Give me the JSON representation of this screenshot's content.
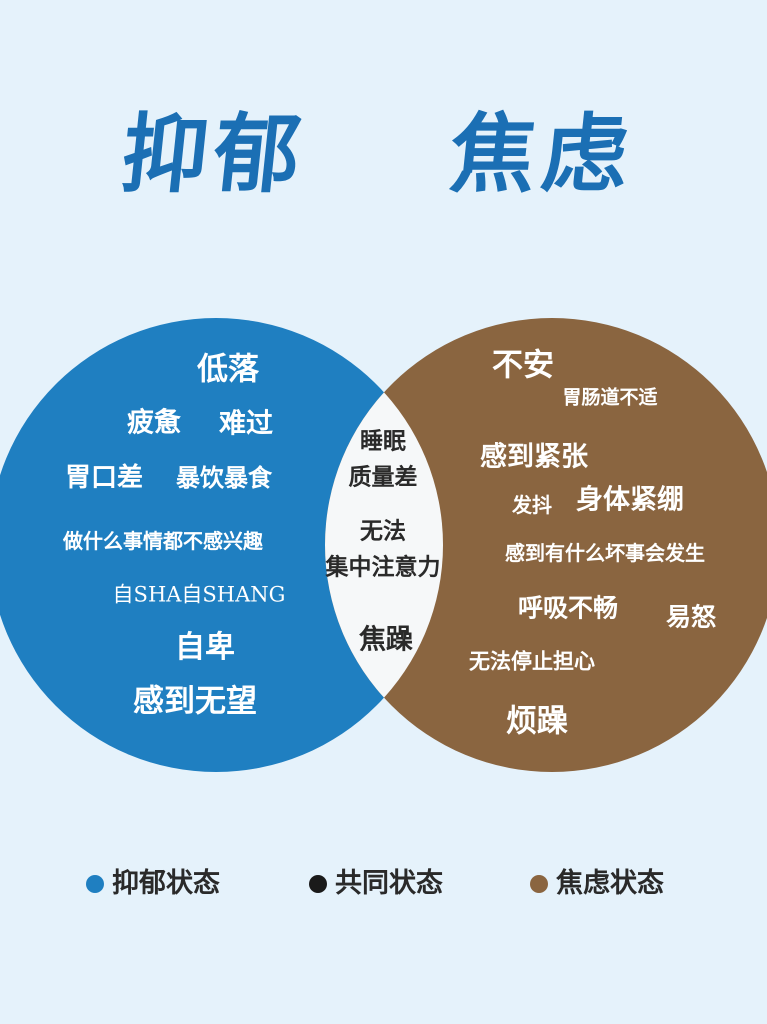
{
  "titles": {
    "left": "抑郁",
    "right": "焦虑"
  },
  "colors": {
    "depression": "#1f7fc1",
    "anxiety": "#8a6540",
    "overlap": "#f6f8f9",
    "title": "#1b6fb4",
    "common_dot": "#1a1a1a",
    "background": "#e5f2fb"
  },
  "depression_items": [
    "低落",
    "疲惫",
    "难过",
    "胃口差",
    "暴饮暴食",
    "做什么事情都不感兴趣",
    "自SHA自SHANG",
    "自卑",
    "感到无望"
  ],
  "common_items": [
    "睡眠",
    "质量差",
    "无法",
    "集中注意力",
    "焦躁"
  ],
  "anxiety_items": [
    "不安",
    "胃肠道不适",
    "感到紧张",
    "发抖",
    "身体紧绷",
    "感到有什么坏事会发生",
    "呼吸不畅",
    "易怒",
    "无法停止担心",
    "烦躁"
  ],
  "legend": [
    {
      "label": "抑郁状态",
      "color": "#1f7fc1"
    },
    {
      "label": "共同状态",
      "color": "#1a1a1a"
    },
    {
      "label": "焦虑状态",
      "color": "#8a6540"
    }
  ]
}
